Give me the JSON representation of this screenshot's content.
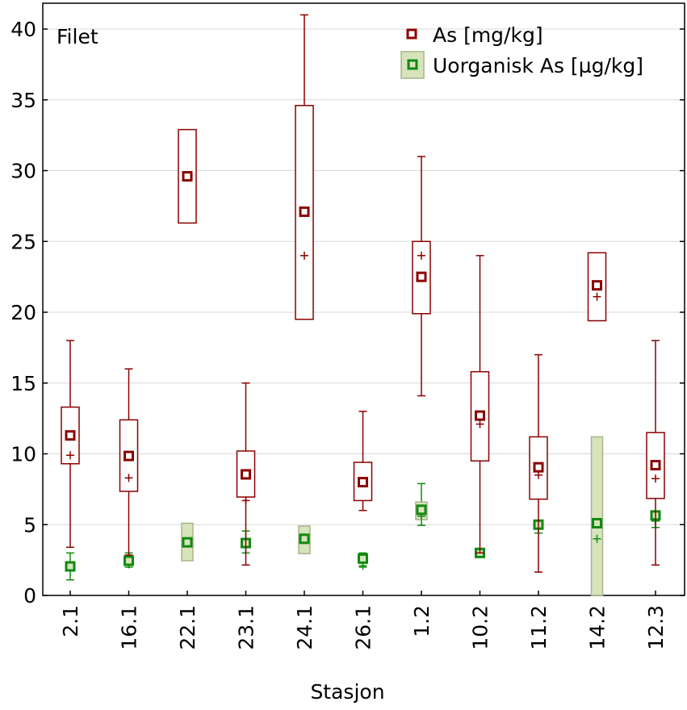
{
  "chart_data": {
    "type": "box",
    "annotation": "Filet",
    "xlabel": "Stasjon",
    "ylabel": "",
    "ylim": [
      0,
      41
    ],
    "yticks": [
      0,
      5,
      10,
      15,
      20,
      25,
      30,
      35,
      40
    ],
    "grid": true,
    "legend_position": "top-right",
    "categories": [
      "2.1",
      "16.1",
      "22.1",
      "23.1",
      "24.1",
      "26.1",
      "1.2",
      "10.2",
      "11.2",
      "14.2",
      "12.3"
    ],
    "series": [
      {
        "name": "As [mg/kg]",
        "color": "#8b0000",
        "box_fill": "#ffffff",
        "mean": [
          11.3,
          9.85,
          29.6,
          8.55,
          27.1,
          8.0,
          22.5,
          12.7,
          9.05,
          21.9,
          9.2
        ],
        "median": [
          9.9,
          8.3,
          29.6,
          6.7,
          24.0,
          8.0,
          24.0,
          12.1,
          8.5,
          21.1,
          8.25
        ],
        "q1": [
          9.3,
          7.35,
          26.3,
          6.95,
          19.5,
          6.7,
          19.9,
          9.5,
          6.8,
          19.4,
          6.85
        ],
        "q3": [
          13.3,
          12.4,
          32.9,
          10.2,
          34.6,
          9.4,
          25.0,
          15.8,
          11.2,
          24.2,
          11.5
        ],
        "min": [
          3.4,
          2.85,
          null,
          2.15,
          null,
          6.0,
          14.1,
          3.0,
          1.65,
          null,
          2.15
        ],
        "max": [
          18.0,
          16.0,
          null,
          15.0,
          41.0,
          13.0,
          31.0,
          24.0,
          17.0,
          null,
          18.0
        ]
      },
      {
        "name": "Uorganisk As [µg/kg]",
        "color": "#108a10",
        "box_fill": "#d6e3bb",
        "mean": [
          2.05,
          2.45,
          3.75,
          3.7,
          4.0,
          2.6,
          6.05,
          3.0,
          5.0,
          5.1,
          5.65
        ],
        "median": [
          2.0,
          2.2,
          3.75,
          3.7,
          4.0,
          2.1,
          5.6,
          3.0,
          4.9,
          4.0,
          5.25
        ],
        "q1": [
          null,
          null,
          2.45,
          null,
          2.95,
          null,
          5.35,
          null,
          null,
          0.0,
          null
        ],
        "q3": [
          null,
          null,
          5.1,
          null,
          4.9,
          null,
          6.6,
          null,
          null,
          11.2,
          null
        ],
        "min": [
          1.1,
          2.0,
          null,
          3.0,
          null,
          2.0,
          4.95,
          null,
          4.4,
          null,
          4.8
        ],
        "max": [
          3.0,
          3.0,
          null,
          4.55,
          null,
          3.0,
          7.9,
          null,
          5.3,
          null,
          5.9
        ]
      }
    ]
  }
}
